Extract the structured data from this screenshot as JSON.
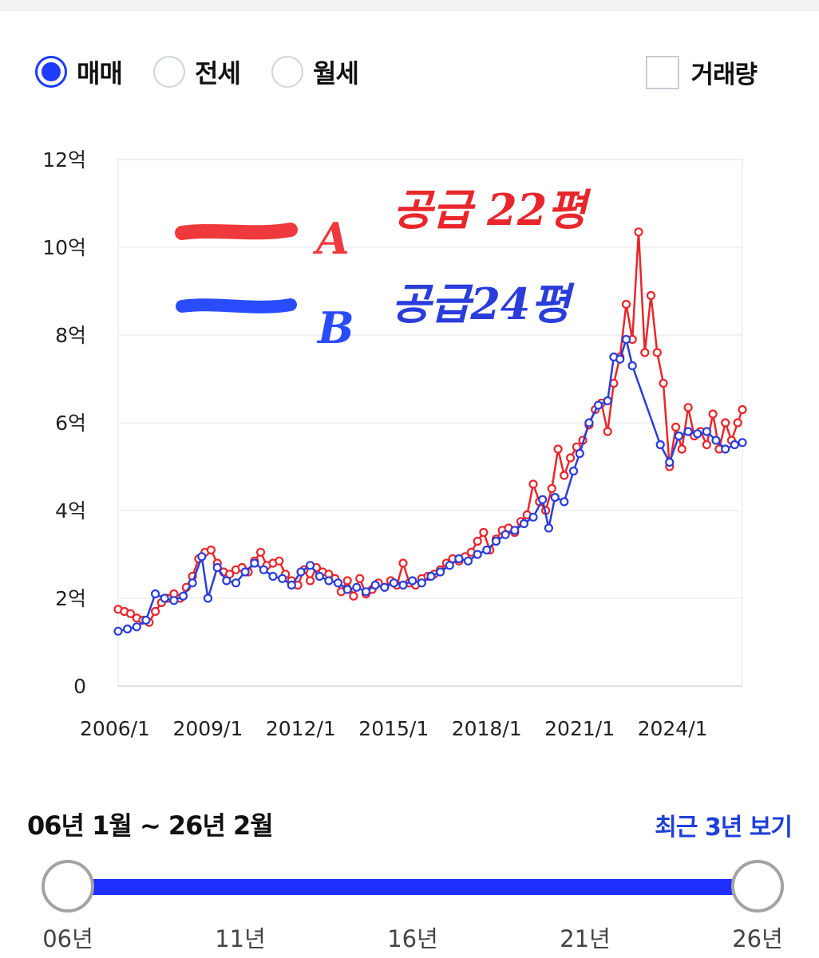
{
  "filters": {
    "options": [
      {
        "label": "매매",
        "selected": true
      },
      {
        "label": "전세",
        "selected": false
      },
      {
        "label": "월세",
        "selected": false
      }
    ],
    "volume": {
      "label": "거래량",
      "checked": false
    }
  },
  "colors": {
    "accent": "#1f3cff",
    "series_a": "#e8262b",
    "series_b": "#2a3ddb",
    "link": "#1f3fd8"
  },
  "annotations": {
    "a_letter": "A",
    "a_text": "공급 22평",
    "b_letter": "B",
    "b_text": "공급24평"
  },
  "chart_data": {
    "type": "line",
    "title": "",
    "xlabel": "",
    "ylabel": "",
    "x_ticks": [
      "2006/1",
      "2009/1",
      "2012/1",
      "2015/1",
      "2018/1",
      "2021/1",
      "2024/1"
    ],
    "y_ticks": [
      "0",
      "2억",
      "4억",
      "6억",
      "8억",
      "10억",
      "12억"
    ],
    "x_range": [
      2006.0,
      2026.15
    ],
    "ylim": [
      0,
      12
    ],
    "y_unit": "억",
    "grid": true,
    "series": [
      {
        "name": "A",
        "color": "#e8262b",
        "points": [
          [
            2006.0,
            1.75
          ],
          [
            2006.2,
            1.7
          ],
          [
            2006.4,
            1.65
          ],
          [
            2006.6,
            1.55
          ],
          [
            2006.8,
            1.5
          ],
          [
            2007.0,
            1.45
          ],
          [
            2007.2,
            1.7
          ],
          [
            2007.4,
            1.9
          ],
          [
            2007.6,
            2.0
          ],
          [
            2007.8,
            2.1
          ],
          [
            2008.0,
            2.0
          ],
          [
            2008.2,
            2.25
          ],
          [
            2008.4,
            2.5
          ],
          [
            2008.6,
            2.9
          ],
          [
            2008.8,
            3.05
          ],
          [
            2009.0,
            3.1
          ],
          [
            2009.2,
            2.8
          ],
          [
            2009.4,
            2.6
          ],
          [
            2009.6,
            2.55
          ],
          [
            2009.8,
            2.65
          ],
          [
            2010.0,
            2.7
          ],
          [
            2010.2,
            2.6
          ],
          [
            2010.4,
            2.85
          ],
          [
            2010.6,
            3.05
          ],
          [
            2010.8,
            2.75
          ],
          [
            2011.0,
            2.8
          ],
          [
            2011.2,
            2.85
          ],
          [
            2011.4,
            2.55
          ],
          [
            2011.6,
            2.4
          ],
          [
            2011.8,
            2.3
          ],
          [
            2012.0,
            2.65
          ],
          [
            2012.2,
            2.4
          ],
          [
            2012.4,
            2.7
          ],
          [
            2012.6,
            2.6
          ],
          [
            2012.8,
            2.55
          ],
          [
            2013.0,
            2.45
          ],
          [
            2013.2,
            2.15
          ],
          [
            2013.4,
            2.4
          ],
          [
            2013.6,
            2.05
          ],
          [
            2013.8,
            2.45
          ],
          [
            2014.0,
            2.1
          ],
          [
            2014.2,
            2.2
          ],
          [
            2014.4,
            2.35
          ],
          [
            2014.6,
            2.25
          ],
          [
            2014.8,
            2.4
          ],
          [
            2015.0,
            2.3
          ],
          [
            2015.2,
            2.8
          ],
          [
            2015.4,
            2.35
          ],
          [
            2015.6,
            2.3
          ],
          [
            2015.8,
            2.45
          ],
          [
            2016.0,
            2.5
          ],
          [
            2016.2,
            2.55
          ],
          [
            2016.4,
            2.65
          ],
          [
            2016.6,
            2.8
          ],
          [
            2016.8,
            2.9
          ],
          [
            2017.0,
            2.85
          ],
          [
            2017.2,
            2.95
          ],
          [
            2017.4,
            3.05
          ],
          [
            2017.6,
            3.3
          ],
          [
            2017.8,
            3.5
          ],
          [
            2018.0,
            3.1
          ],
          [
            2018.2,
            3.35
          ],
          [
            2018.4,
            3.55
          ],
          [
            2018.6,
            3.6
          ],
          [
            2018.8,
            3.5
          ],
          [
            2019.0,
            3.75
          ],
          [
            2019.2,
            3.9
          ],
          [
            2019.4,
            4.6
          ],
          [
            2019.6,
            4.2
          ],
          [
            2019.8,
            4.0
          ],
          [
            2020.0,
            4.5
          ],
          [
            2020.2,
            5.4
          ],
          [
            2020.4,
            4.8
          ],
          [
            2020.6,
            5.2
          ],
          [
            2020.8,
            5.45
          ],
          [
            2021.0,
            5.6
          ],
          [
            2021.2,
            5.95
          ],
          [
            2021.4,
            6.3
          ],
          [
            2021.6,
            6.45
          ],
          [
            2021.8,
            5.8
          ],
          [
            2022.0,
            6.9
          ],
          [
            2022.2,
            7.5
          ],
          [
            2022.4,
            8.7
          ],
          [
            2022.6,
            7.9
          ],
          [
            2022.8,
            10.35
          ],
          [
            2023.0,
            7.6
          ],
          [
            2023.2,
            8.9
          ],
          [
            2023.4,
            7.6
          ],
          [
            2023.6,
            6.9
          ],
          [
            2023.8,
            5.0
          ],
          [
            2024.0,
            5.9
          ],
          [
            2024.2,
            5.4
          ],
          [
            2024.4,
            6.35
          ],
          [
            2024.6,
            5.7
          ],
          [
            2024.8,
            5.8
          ],
          [
            2025.0,
            5.5
          ],
          [
            2025.2,
            6.2
          ],
          [
            2025.4,
            5.4
          ],
          [
            2025.6,
            6.0
          ],
          [
            2025.8,
            5.6
          ],
          [
            2026.0,
            6.0
          ],
          [
            2026.15,
            6.3
          ]
        ]
      },
      {
        "name": "B",
        "color": "#2a3ddb",
        "points": [
          [
            2006.0,
            1.25
          ],
          [
            2006.3,
            1.3
          ],
          [
            2006.6,
            1.35
          ],
          [
            2006.9,
            1.5
          ],
          [
            2007.2,
            2.1
          ],
          [
            2007.5,
            2.0
          ],
          [
            2007.8,
            1.95
          ],
          [
            2008.1,
            2.05
          ],
          [
            2008.4,
            2.35
          ],
          [
            2008.7,
            2.95
          ],
          [
            2008.9,
            2.0
          ],
          [
            2009.2,
            2.7
          ],
          [
            2009.5,
            2.4
          ],
          [
            2009.8,
            2.35
          ],
          [
            2010.1,
            2.6
          ],
          [
            2010.4,
            2.8
          ],
          [
            2010.7,
            2.65
          ],
          [
            2011.0,
            2.5
          ],
          [
            2011.3,
            2.45
          ],
          [
            2011.6,
            2.3
          ],
          [
            2011.9,
            2.6
          ],
          [
            2012.2,
            2.75
          ],
          [
            2012.5,
            2.5
          ],
          [
            2012.8,
            2.4
          ],
          [
            2013.1,
            2.35
          ],
          [
            2013.4,
            2.2
          ],
          [
            2013.7,
            2.25
          ],
          [
            2014.0,
            2.15
          ],
          [
            2014.3,
            2.3
          ],
          [
            2014.6,
            2.25
          ],
          [
            2014.9,
            2.35
          ],
          [
            2015.2,
            2.3
          ],
          [
            2015.5,
            2.4
          ],
          [
            2015.8,
            2.35
          ],
          [
            2016.1,
            2.5
          ],
          [
            2016.4,
            2.6
          ],
          [
            2016.7,
            2.75
          ],
          [
            2017.0,
            2.9
          ],
          [
            2017.3,
            2.85
          ],
          [
            2017.6,
            3.0
          ],
          [
            2017.9,
            3.1
          ],
          [
            2018.2,
            3.3
          ],
          [
            2018.5,
            3.45
          ],
          [
            2018.8,
            3.55
          ],
          [
            2019.1,
            3.7
          ],
          [
            2019.4,
            3.85
          ],
          [
            2019.7,
            4.25
          ],
          [
            2019.9,
            3.6
          ],
          [
            2020.1,
            4.3
          ],
          [
            2020.4,
            4.2
          ],
          [
            2020.7,
            4.9
          ],
          [
            2020.9,
            5.3
          ],
          [
            2021.2,
            6.0
          ],
          [
            2021.5,
            6.4
          ],
          [
            2021.8,
            6.5
          ],
          [
            2022.0,
            7.5
          ],
          [
            2022.2,
            7.45
          ],
          [
            2022.4,
            7.9
          ],
          [
            2022.6,
            7.3
          ],
          [
            2023.5,
            5.5
          ],
          [
            2023.8,
            5.1
          ],
          [
            2024.1,
            5.7
          ],
          [
            2024.4,
            5.8
          ],
          [
            2024.7,
            5.75
          ],
          [
            2025.0,
            5.8
          ],
          [
            2025.3,
            5.6
          ],
          [
            2025.6,
            5.4
          ],
          [
            2025.9,
            5.5
          ],
          [
            2026.15,
            5.55
          ]
        ]
      }
    ]
  },
  "range": {
    "text": "06년 1월 ~ 26년 2월",
    "recent_label": "최근 3년 보기"
  },
  "slider": {
    "start_fraction": 0.0,
    "end_fraction": 1.0,
    "labels": [
      {
        "text": "06년",
        "fraction": 0.0
      },
      {
        "text": "11년",
        "fraction": 0.25
      },
      {
        "text": "16년",
        "fraction": 0.5
      },
      {
        "text": "21년",
        "fraction": 0.75
      },
      {
        "text": "26년",
        "fraction": 1.0
      }
    ]
  }
}
